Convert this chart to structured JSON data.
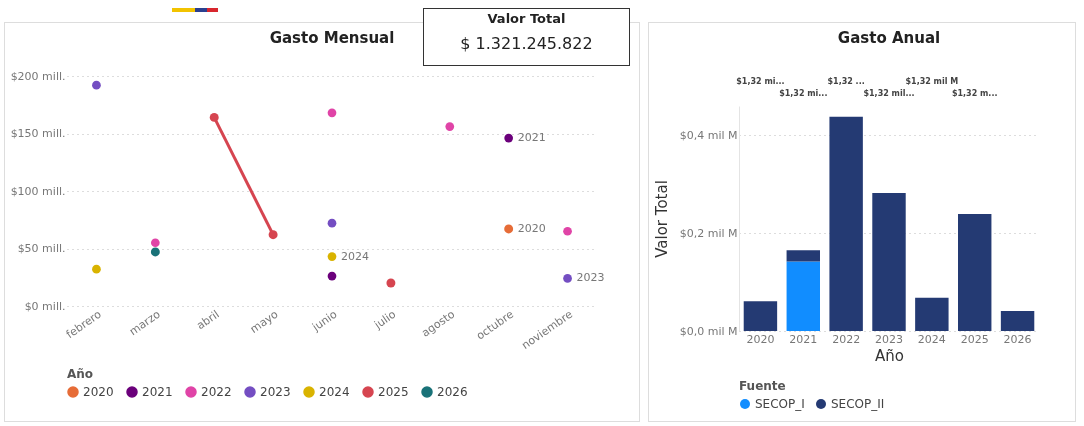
{
  "chart_data": [
    {
      "type": "line",
      "title": "Gasto Mensual",
      "marker": "circle",
      "legend": "bottom",
      "legend_title": "Año",
      "grid": "y",
      "line_style": "solid",
      "categories": [
        "febrero",
        "marzo",
        "abril",
        "mayo",
        "junio",
        "julio",
        "agosto",
        "octubre",
        "noviembre"
      ],
      "ylim": [
        0,
        200
      ],
      "yticks": [
        {
          "value": 0,
          "label": "$0 mill."
        },
        {
          "value": 50,
          "label": "$50 mill."
        },
        {
          "value": 100,
          "label": "$100 mill."
        },
        {
          "value": 150,
          "label": "$150 mill."
        },
        {
          "value": 200,
          "label": "$200 mill."
        }
      ],
      "series": [
        {
          "name": "2020",
          "color": "#e66c37",
          "values": [
            null,
            null,
            null,
            null,
            null,
            null,
            null,
            67,
            null
          ]
        },
        {
          "name": "2021",
          "type": "scatter",
          "color": "#6b007b",
          "values": [
            null,
            null,
            null,
            null,
            26,
            null,
            null,
            146,
            null
          ]
        },
        {
          "name": "2022",
          "type": "scatter",
          "color": "#e044a7",
          "values": [
            null,
            55,
            null,
            null,
            168,
            null,
            156,
            null,
            65
          ]
        },
        {
          "name": "2023",
          "type": "scatter",
          "color": "#744ec2",
          "values": [
            192,
            null,
            null,
            null,
            72,
            null,
            null,
            null,
            24
          ]
        },
        {
          "name": "2024",
          "type": "scatter",
          "color": "#d9b300",
          "values": [
            32,
            null,
            null,
            null,
            43,
            null,
            null,
            null,
            null
          ]
        },
        {
          "name": "2025",
          "color": "#d64550",
          "values": [
            null,
            null,
            164,
            62,
            null,
            20,
            null,
            null,
            null
          ]
        },
        {
          "name": "2026",
          "color": "#197278",
          "values": [
            null,
            47,
            null,
            null,
            null,
            null,
            null,
            null,
            null
          ]
        }
      ],
      "annotations": [
        {
          "text": "2021",
          "x": "octubre",
          "y": 146
        },
        {
          "text": "2020",
          "x": "octubre",
          "y": 67
        },
        {
          "text": "2024",
          "x": "junio",
          "y": 43
        },
        {
          "text": "2023",
          "x": "noviembre",
          "y": 24
        }
      ]
    },
    {
      "type": "other",
      "title": "Valor Total",
      "annotations": [
        "$ 1.321.245.822"
      ]
    },
    {
      "type": "bar",
      "title": "Gasto Anual",
      "stacked": true,
      "xlabel": "Año",
      "ylabel": "Valor Total",
      "legend": "bottom",
      "legend_title": "Fuente",
      "grid": "y",
      "categories": [
        "2020",
        "2021",
        "2022",
        "2023",
        "2024",
        "2025",
        "2026"
      ],
      "ylim": [
        0,
        0.46
      ],
      "yticks": [
        {
          "value": 0,
          "label": "$0,0 mil M"
        },
        {
          "value": 0.2,
          "label": "$0,2 mil M"
        },
        {
          "value": 0.4,
          "label": "$0,4 mil M"
        }
      ],
      "series": [
        {
          "name": "SECOP_I",
          "color": "#118dff",
          "values": [
            null,
            0.142,
            null,
            null,
            null,
            null,
            null
          ]
        },
        {
          "name": "SECOP_II",
          "color": "#243a73",
          "values": [
            0.061,
            0.023,
            0.438,
            0.282,
            0.068,
            0.239,
            0.041
          ]
        }
      ],
      "annotations": [
        "$1,32 mi...",
        "$1,32 mi...",
        "$1,32 ...",
        "$1,32 mil...",
        "$1,32 mil M",
        "$1,32 m..."
      ]
    }
  ]
}
